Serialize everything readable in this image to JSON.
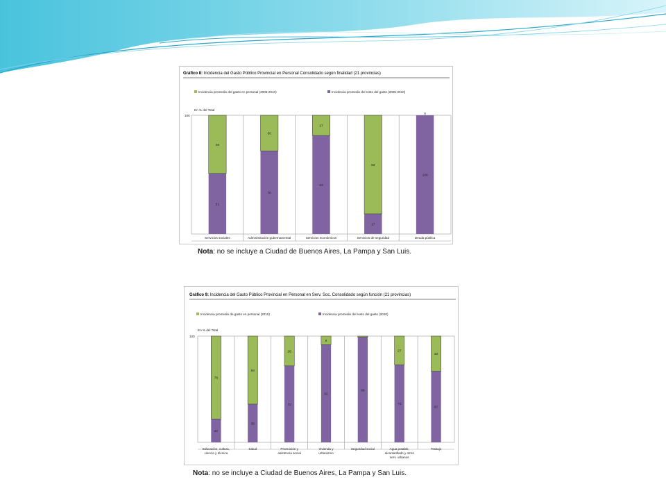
{
  "colors": {
    "green": "#9bbb59",
    "purple": "#8064a2",
    "accent": "#5bc0de"
  },
  "chart_data": [
    {
      "type": "bar",
      "stacked": true,
      "title_bold": "Gráfico 8:",
      "title": "Incidencia del Gasto Público Provincial en Personal Consolidado según finalidad (21 provincias)",
      "ylabel": "En % del Total",
      "ytick": "100",
      "ylim": [
        0,
        100
      ],
      "categories": [
        "Servicios sociales",
        "Administración gubernamental",
        "Servicios económicos",
        "Servicios de seguridad",
        "Deuda pública"
      ],
      "series": [
        {
          "name": "Incidencia promedio del gasto en personal (2005-2010)",
          "color": "#9bbb59",
          "values": [
            49,
            30,
            17,
            83,
            0
          ],
          "labels": [
            "49",
            "30",
            "17",
            "83",
            "0"
          ]
        },
        {
          "name": "Incidencia promedio del resto del gasto (2005-2010)",
          "color": "#8064a2",
          "values": [
            51,
            70,
            83,
            17,
            100
          ],
          "labels": [
            "51",
            "70",
            "83",
            "17",
            "100"
          ]
        }
      ],
      "note_bold": "Nota",
      "note": ": no se incluye a Ciudad de Buenos Aires, La Pampa y San Luis."
    },
    {
      "type": "bar",
      "stacked": true,
      "title_bold": "Gráfico 9:",
      "title": "Incidencia del Gasto Público Provincial en Personal en Serv. Soc. Consolidado según función (21 provincias)",
      "ylabel": "En % del Total",
      "ytick": "100",
      "ylim": [
        0,
        100
      ],
      "categories": [
        "Educación, cultura, ciencia y técnica",
        "Salud",
        "Promoción y asistencia social",
        "Vivienda y urbanismo",
        "Seguridad social",
        "Agua potable, alcantarillado y otros serv. urbanos",
        "Trabajo"
      ],
      "series": [
        {
          "name": "Incidencia promedio de gasto en personal (2010)",
          "color": "#9bbb59",
          "values": [
            78,
            64,
            28,
            8,
            1,
            27,
            33
          ],
          "labels": [
            "78",
            "64",
            "28",
            "8",
            "",
            "27",
            "33"
          ]
        },
        {
          "name": "Incidencia promedio del resto del gasto (2010)",
          "color": "#8064a2",
          "values": [
            22,
            36,
            72,
            92,
            99,
            73,
            67
          ],
          "labels": [
            "22",
            "36",
            "72",
            "92",
            "99",
            "73",
            "67"
          ]
        }
      ],
      "note_bold": "Nota",
      "note": ": no se incluye a Ciudad de Buenos Aires, La Pampa y San Luis."
    }
  ]
}
